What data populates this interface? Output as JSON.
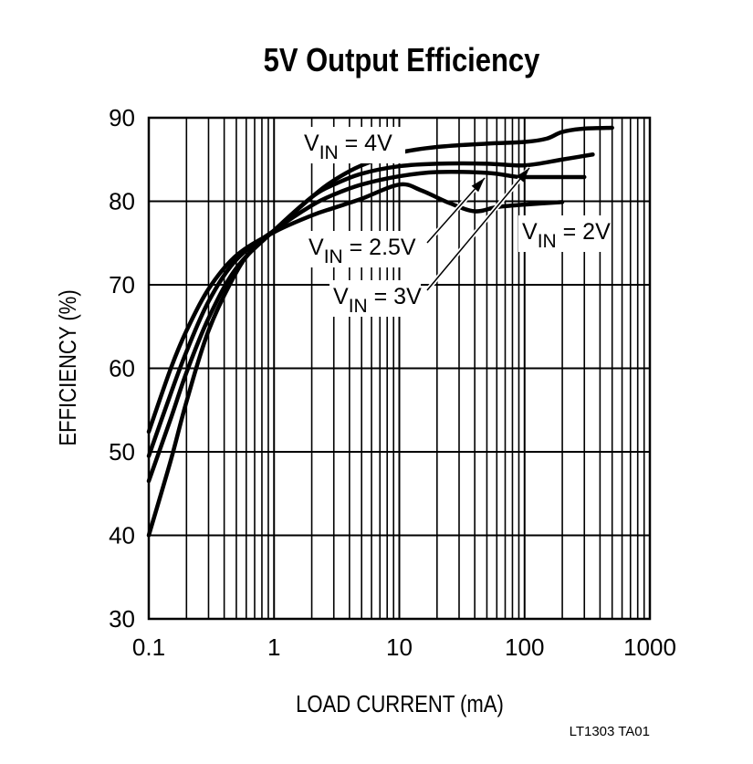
{
  "chart_data": {
    "type": "line",
    "title": "5V Output Efficiency",
    "xlabel": "LOAD CURRENT (mA)",
    "ylabel": "EFFICIENCY (%)",
    "xscale": "log",
    "xlim": [
      0.1,
      1000
    ],
    "ylim": [
      30,
      90
    ],
    "xticks": [
      "0.1",
      "1",
      "10",
      "100",
      "1000"
    ],
    "yticks": [
      "30",
      "40",
      "50",
      "60",
      "70",
      "80",
      "90"
    ],
    "grid": true,
    "footnote": "LT1303 TA01",
    "line_color": "#000000",
    "series": [
      {
        "name": "V_IN = 4V",
        "label_main": "V",
        "label_sub": "IN",
        "label_rest": " = 4V",
        "points": [
          [
            0.1,
            40
          ],
          [
            0.15,
            49
          ],
          [
            0.2,
            56
          ],
          [
            0.3,
            64.5
          ],
          [
            0.5,
            71.5
          ],
          [
            0.7,
            74.5
          ],
          [
            1,
            76.5
          ],
          [
            2,
            80.5
          ],
          [
            3,
            82.5
          ],
          [
            5,
            84.3
          ],
          [
            10,
            85.8
          ],
          [
            20,
            86.5
          ],
          [
            50,
            86.9
          ],
          [
            100,
            87.1
          ],
          [
            150,
            87.5
          ],
          [
            200,
            88.3
          ],
          [
            300,
            88.7
          ],
          [
            500,
            88.8
          ]
        ]
      },
      {
        "name": "V_IN = 3V",
        "label_main": "V",
        "label_sub": "IN",
        "label_rest": " = 3V",
        "points": [
          [
            0.1,
            46.5
          ],
          [
            0.15,
            54
          ],
          [
            0.2,
            59.5
          ],
          [
            0.3,
            66
          ],
          [
            0.5,
            72
          ],
          [
            1,
            76.5
          ],
          [
            2,
            80.5
          ],
          [
            3,
            82
          ],
          [
            5,
            83.3
          ],
          [
            10,
            84.2
          ],
          [
            20,
            84.5
          ],
          [
            50,
            84.5
          ],
          [
            100,
            84.3
          ],
          [
            200,
            85
          ],
          [
            350,
            85.6
          ]
        ]
      },
      {
        "name": "V_IN = 2.5V",
        "label_main": "V",
        "label_sub": "IN",
        "label_rest": " = 2.5V",
        "points": [
          [
            0.1,
            49.5
          ],
          [
            0.15,
            57
          ],
          [
            0.2,
            62
          ],
          [
            0.3,
            68
          ],
          [
            0.5,
            73
          ],
          [
            1,
            76.5
          ],
          [
            2,
            79.5
          ],
          [
            3,
            80.8
          ],
          [
            5,
            82
          ],
          [
            10,
            83
          ],
          [
            20,
            83.5
          ],
          [
            50,
            83.4
          ],
          [
            80,
            83
          ],
          [
            100,
            82.9
          ],
          [
            300,
            82.9
          ]
        ]
      },
      {
        "name": "V_IN = 2V",
        "label_main": "V",
        "label_sub": "IN",
        "label_rest": " = 2V",
        "points": [
          [
            0.1,
            52.4
          ],
          [
            0.15,
            60
          ],
          [
            0.2,
            64.5
          ],
          [
            0.3,
            69.5
          ],
          [
            0.5,
            73.5
          ],
          [
            1,
            76.3
          ],
          [
            2,
            78.3
          ],
          [
            3,
            79.2
          ],
          [
            5,
            80.3
          ],
          [
            10,
            82
          ],
          [
            15,
            81.3
          ],
          [
            25,
            79.8
          ],
          [
            40,
            78.8
          ],
          [
            60,
            79.3
          ],
          [
            100,
            79.6
          ],
          [
            200,
            79.9
          ]
        ]
      }
    ]
  }
}
